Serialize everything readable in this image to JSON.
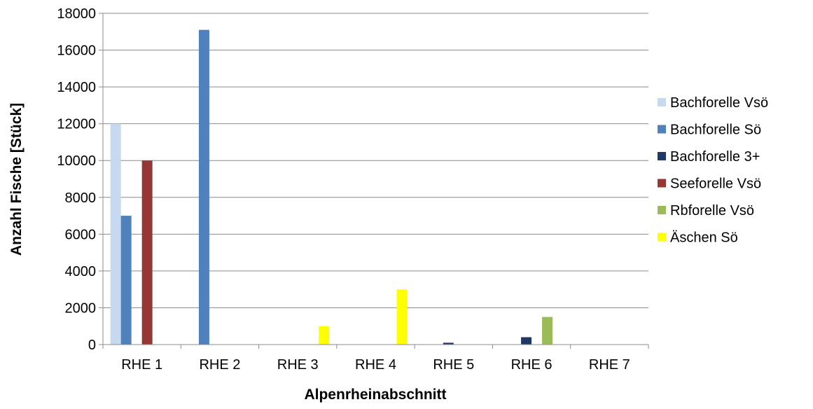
{
  "chart_data": {
    "type": "bar",
    "title": "",
    "xlabel": "Alpenrheinabschnitt",
    "ylabel": "Anzahl Fische [Stück]",
    "ylim": [
      0,
      18000
    ],
    "yticks": [
      0,
      2000,
      4000,
      6000,
      8000,
      10000,
      12000,
      14000,
      16000,
      18000
    ],
    "grid": true,
    "legend_position": "right",
    "categories": [
      "RHE 1",
      "RHE 2",
      "RHE 3",
      "RHE 4",
      "RHE 5",
      "RHE 6",
      "RHE 7"
    ],
    "series": [
      {
        "name": "Bachforelle Vsö",
        "color": "#c6d9f1",
        "values": [
          12000,
          0,
          0,
          0,
          0,
          0,
          0
        ]
      },
      {
        "name": "Bachforelle Sö",
        "color": "#4f81bd",
        "values": [
          7000,
          17100,
          0,
          0,
          0,
          0,
          0
        ]
      },
      {
        "name": "Bachforelle 3+",
        "color": "#1f3864",
        "values": [
          0,
          0,
          0,
          0,
          100,
          400,
          0
        ]
      },
      {
        "name": "Seeforelle Vsö",
        "color": "#953735",
        "values": [
          10000,
          0,
          0,
          0,
          0,
          0,
          0
        ]
      },
      {
        "name": "Rbforelle Vsö",
        "color": "#9bbb59",
        "values": [
          0,
          0,
          0,
          0,
          0,
          1500,
          0
        ]
      },
      {
        "name": "Äschen Sö",
        "color": "#ffff00",
        "values": [
          0,
          0,
          1000,
          3000,
          0,
          0,
          0
        ]
      }
    ]
  }
}
